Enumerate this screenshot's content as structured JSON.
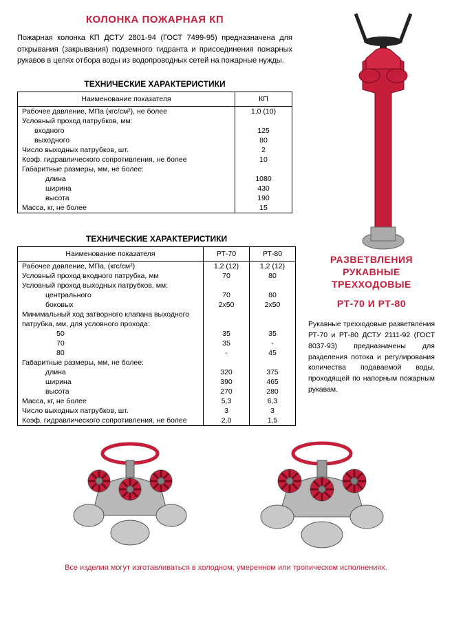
{
  "colors": {
    "red": "#c41e3a",
    "silver": "#b8b8b8"
  },
  "sec1": {
    "title": "КОЛОНКА ПОЖАРНАЯ КП",
    "desc": "Пожарная колонка КП ДСТУ 2801-94 (ГОСТ 7499-95) предназначена для открывания (закрывания) подземного гидранта и присоединения пожарных рукавов в целях отбора воды из водопроводных сетей на пожарные нужды.",
    "tableTitle": "ТЕХНИЧЕСКИЕ ХАРАКТЕРИСТИКИ",
    "h1": "Наименование показателя",
    "h2": "КП",
    "rows": [
      {
        "n": "Рабочее давление, МПа (кгс/см²), не более",
        "v": "1,0 (10)"
      },
      {
        "n": "Условный проход патрубков, мм:",
        "v": ""
      },
      {
        "n": "входного",
        "v": "125",
        "i": 1
      },
      {
        "n": "выходного",
        "v": "80",
        "i": 1
      },
      {
        "n": "Число выходных патрубков, шт.",
        "v": "2"
      },
      {
        "n": "Коэф. гидравлического сопротивления, не более",
        "v": "10"
      },
      {
        "n": "Габаритные размеры, мм, не более:",
        "v": ""
      },
      {
        "n": "длина",
        "v": "1080",
        "i": 2
      },
      {
        "n": "ширина",
        "v": "430",
        "i": 2
      },
      {
        "n": "высота",
        "v": "190",
        "i": 2
      },
      {
        "n": "Масса, кг, не более",
        "v": "15"
      }
    ]
  },
  "sec2": {
    "tableTitle": "ТЕХНИЧЕСКИЕ ХАРАКТЕРИСТИКИ",
    "title": "РАЗВЕТВЛЕНИЯ РУКАВНЫЕ ТРЕХХОДОВЫЕ",
    "subtitle": "РТ-70 И РТ-80",
    "desc": "Рукавные трехходовые разветвления РТ-70 и РТ-80 ДСТУ 2111-92 (ГОСТ 8037-93) предназначены для разделения потока и регулирования количества подаваемой воды, проходящей по напорным пожарным рукавам.",
    "h1": "Наименование показателя",
    "h2": "РТ-70",
    "h3": "РТ-80",
    "rows": [
      {
        "n": "Рабочее давление, МПа, (кгс/см²)",
        "v1": "1,2 (12)",
        "v2": "1,2 (12)"
      },
      {
        "n": "Условный проход входного патрубка, мм",
        "v1": "70",
        "v2": "80"
      },
      {
        "n": "Условный проход выходных патрубков, мм:",
        "v1": "",
        "v2": ""
      },
      {
        "n": "центрального",
        "v1": "70",
        "v2": "80",
        "i": 2
      },
      {
        "n": "боковых",
        "v1": "2х50",
        "v2": "2х50",
        "i": 2
      },
      {
        "n": "Минимальный ход затворного клапана выходного",
        "v1": "",
        "v2": ""
      },
      {
        "n": "патрубка, мм, для условного прохода:",
        "v1": "",
        "v2": ""
      },
      {
        "n": "50",
        "v1": "35",
        "v2": "35",
        "i": 3
      },
      {
        "n": "70",
        "v1": "35",
        "v2": "-",
        "i": 3
      },
      {
        "n": "80",
        "v1": "-",
        "v2": "45",
        "i": 3
      },
      {
        "n": "Габаритные размеры, мм, не более:",
        "v1": "",
        "v2": ""
      },
      {
        "n": "длина",
        "v1": "320",
        "v2": "375",
        "i": 2
      },
      {
        "n": "ширина",
        "v1": "390",
        "v2": "465",
        "i": 2
      },
      {
        "n": "высота",
        "v1": "270",
        "v2": "280",
        "i": 2
      },
      {
        "n": "Масса, кг, не более",
        "v1": "5,3",
        "v2": "6,3"
      },
      {
        "n": "Число выходных патрубков, шт.",
        "v1": "3",
        "v2": "3"
      },
      {
        "n": "Коэф. гидравлического сопротивления, не более",
        "v1": "2,0",
        "v2": "1,5"
      }
    ]
  },
  "footer": "Все изделия могут изготавливаться в холодном, умеренном или тропическом исполнениях."
}
